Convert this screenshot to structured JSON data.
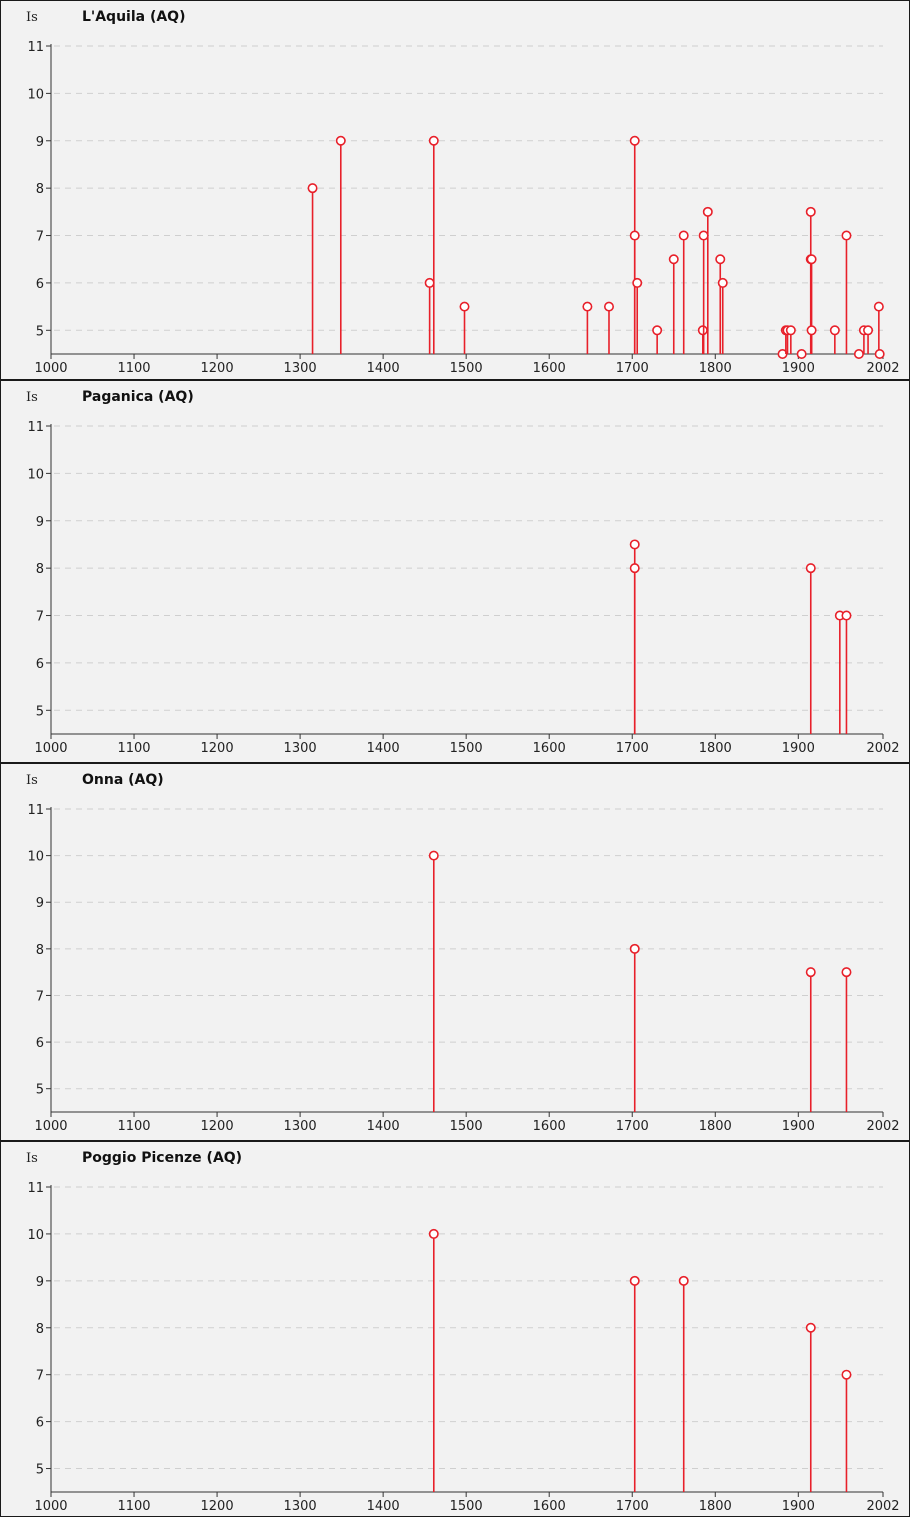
{
  "chart_data": [
    {
      "type": "stem",
      "title": "L'Aquila (AQ)",
      "ylabel": "Is",
      "xlabel": "",
      "xlim": [
        1000,
        2002
      ],
      "ylim": [
        4.5,
        11
      ],
      "xticks": [
        "1000",
        "1100",
        "1200",
        "1300",
        "1400",
        "1500",
        "1600",
        "1700",
        "1800",
        "1900",
        "2002"
      ],
      "yticks": [
        "5",
        "6",
        "7",
        "8",
        "9",
        "10",
        "11"
      ],
      "grid": true,
      "series": [
        {
          "color": "#e8202a",
          "x": [
            1315,
            1349,
            1456,
            1461,
            1498,
            1646,
            1672,
            1703,
            1703,
            1706,
            1730,
            1750,
            1762,
            1785,
            1786,
            1791,
            1806,
            1809,
            1881,
            1885,
            1887,
            1891,
            1904,
            1915,
            1915,
            1916,
            1916,
            1944,
            1958,
            1973,
            1979,
            1984,
            1997,
            1998
          ],
          "y": [
            8,
            9,
            6,
            9,
            5.5,
            5.5,
            5.5,
            9,
            7,
            6,
            5,
            6.5,
            7,
            5,
            7,
            7.5,
            6.5,
            6,
            4.5,
            5,
            5,
            5,
            4.5,
            7.5,
            6.5,
            6.5,
            5,
            5,
            7,
            4.5,
            5,
            5,
            5.5,
            4.5
          ]
        }
      ]
    },
    {
      "type": "stem",
      "title": "Paganica (AQ)",
      "ylabel": "Is",
      "xlabel": "",
      "xlim": [
        1000,
        2002
      ],
      "ylim": [
        4.5,
        11
      ],
      "xticks": [
        "1000",
        "1100",
        "1200",
        "1300",
        "1400",
        "1500",
        "1600",
        "1700",
        "1800",
        "1900",
        "2002"
      ],
      "yticks": [
        "5",
        "6",
        "7",
        "8",
        "9",
        "10",
        "11"
      ],
      "grid": true,
      "series": [
        {
          "color": "#e8202a",
          "x": [
            1703,
            1703,
            1915,
            1950,
            1958
          ],
          "y": [
            8.5,
            8,
            8,
            7,
            7
          ]
        }
      ]
    },
    {
      "type": "stem",
      "title": "Onna (AQ)",
      "ylabel": "Is",
      "xlabel": "",
      "xlim": [
        1000,
        2002
      ],
      "ylim": [
        4.5,
        11
      ],
      "xticks": [
        "1000",
        "1100",
        "1200",
        "1300",
        "1400",
        "1500",
        "1600",
        "1700",
        "1800",
        "1900",
        "2002"
      ],
      "yticks": [
        "5",
        "6",
        "7",
        "8",
        "9",
        "10",
        "11"
      ],
      "grid": true,
      "series": [
        {
          "color": "#e8202a",
          "x": [
            1461,
            1703,
            1915,
            1958
          ],
          "y": [
            10,
            8,
            7.5,
            7.5
          ]
        }
      ]
    },
    {
      "type": "stem",
      "title": "Poggio Picenze (AQ)",
      "ylabel": "Is",
      "xlabel": "",
      "xlim": [
        1000,
        2002
      ],
      "ylim": [
        4.5,
        11
      ],
      "xticks": [
        "1000",
        "1100",
        "1200",
        "1300",
        "1400",
        "1500",
        "1600",
        "1700",
        "1800",
        "1900",
        "2002"
      ],
      "yticks": [
        "5",
        "6",
        "7",
        "8",
        "9",
        "10",
        "11"
      ],
      "grid": true,
      "series": [
        {
          "color": "#e8202a",
          "x": [
            1461,
            1703,
            1762,
            1915,
            1958
          ],
          "y": [
            10,
            9,
            9,
            8,
            7
          ]
        }
      ]
    }
  ]
}
